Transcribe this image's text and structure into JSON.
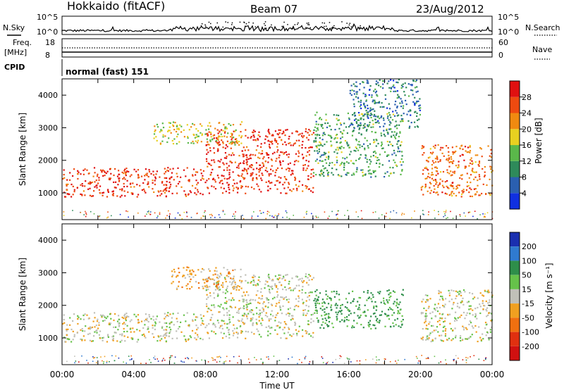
{
  "header": {
    "station": "Hokkaido (fitACF)",
    "beam": "Beam 07",
    "date": "23/Aug/2012"
  },
  "summary_panels": {
    "nsky_label": "N.Sky",
    "nsky_ticks": [
      "10^5",
      "10^0"
    ],
    "nsearch_label": "N.Search",
    "nsearch_ticks": [
      "10^5",
      "10^0"
    ],
    "freq_label": "Freq.",
    "freq_unit": "[MHz]",
    "freq_ticks": [
      "18",
      "8"
    ],
    "nave_label": "Nave",
    "nave_ticks": [
      "60",
      "0"
    ],
    "cpid_label": "CPID",
    "cpid_value": "normal (fast) 151"
  },
  "axes": {
    "ylabel": "Slant Range [km]",
    "xlabel": "Time UT",
    "x_ticks": [
      "00:00",
      "04:00",
      "08:00",
      "12:00",
      "16:00",
      "20:00",
      "00:00"
    ],
    "y_ticks": [
      "1000",
      "2000",
      "3000",
      "4000"
    ],
    "power_unit": "Power [dB]",
    "velocity_unit": "Velocity [m s⁻¹]"
  },
  "colors": {
    "power_scale": [
      "#1030e0",
      "#2a5fb0",
      "#2e8a5a",
      "#5ab84a",
      "#e8d020",
      "#f08a10",
      "#ee4a10",
      "#e01010"
    ],
    "velocity_scale": [
      "#1a2fb0",
      "#2f7ad0",
      "#2e8e4a",
      "#66c24a",
      "#c0c0b8",
      "#f0a020",
      "#f07010",
      "#e03010",
      "#d01010"
    ]
  },
  "chart_data": [
    {
      "type": "heatmap",
      "title": "Power",
      "x_range_hours": [
        0,
        24
      ],
      "y_range_km": [
        180,
        4500
      ],
      "colorbar_label": "Power [dB]",
      "colorbar_ticks": [
        4,
        8,
        12,
        16,
        20,
        24,
        28
      ],
      "features": [
        {
          "t_start": 0,
          "t_end": 8,
          "range_km": [
            900,
            1800
          ],
          "power_db": 28
        },
        {
          "t_start": 8,
          "t_end": 14,
          "range_km": [
            1000,
            3000
          ],
          "power_db": 28
        },
        {
          "t_start": 5,
          "t_end": 10,
          "range_km": [
            2500,
            3200
          ],
          "power_db": 18
        },
        {
          "t_start": 14,
          "t_end": 19,
          "range_km": [
            1500,
            3500
          ],
          "power_db": 12
        },
        {
          "t_start": 16,
          "t_end": 20,
          "range_km": [
            3000,
            4500
          ],
          "power_db": 8
        },
        {
          "t_start": 20,
          "t_end": 24,
          "range_km": [
            900,
            2500
          ],
          "power_db": 24
        }
      ]
    },
    {
      "type": "heatmap",
      "title": "Velocity",
      "x_range_hours": [
        0,
        24
      ],
      "y_range_km": [
        180,
        4500
      ],
      "colorbar_label": "Velocity [m s⁻¹]",
      "colorbar_ticks": [
        200,
        100,
        50,
        15,
        -15,
        -50,
        -100,
        -200
      ],
      "features": [
        {
          "t_start": 0,
          "t_end": 8,
          "range_km": [
            900,
            1800
          ],
          "velocity": 0
        },
        {
          "t_start": 8,
          "t_end": 14,
          "range_km": [
            1000,
            3000
          ],
          "velocity": 0
        },
        {
          "t_start": 6,
          "t_end": 10,
          "range_km": [
            2500,
            3200
          ],
          "velocity": -30
        },
        {
          "t_start": 14,
          "t_end": 19,
          "range_km": [
            1300,
            2500
          ],
          "velocity": 60
        },
        {
          "t_start": 20,
          "t_end": 24,
          "range_km": [
            900,
            2500
          ],
          "velocity": 0
        }
      ]
    }
  ]
}
